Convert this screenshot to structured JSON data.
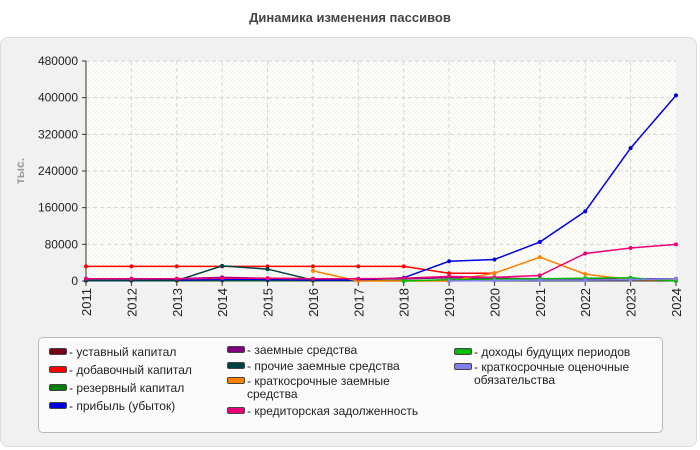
{
  "title": "Динамика изменения пассивов",
  "chart_data": {
    "type": "line",
    "ylabel": "тыс.",
    "xlabel": "",
    "x": [
      "2011",
      "2012",
      "2013",
      "2014",
      "2015",
      "2016",
      "2017",
      "2018",
      "2019",
      "2020",
      "2021",
      "2022",
      "2023",
      "2024"
    ],
    "ylim": [
      0,
      480000
    ],
    "yticks": [
      "480000",
      "400000",
      "320000",
      "240000",
      "160000",
      "80000",
      "0"
    ],
    "grid": true,
    "legend_position": "bottom",
    "series": [
      {
        "name": "уставный капитал",
        "color": "#7a0010",
        "values": [
          null,
          null,
          null,
          null,
          null,
          null,
          null,
          null,
          null,
          null,
          null,
          null,
          null,
          null
        ]
      },
      {
        "name": "добавочный капитал",
        "color": "#ff0000",
        "values": [
          32000,
          32000,
          32000,
          32000,
          32000,
          32000,
          32000,
          32000,
          17000,
          17000,
          null,
          null,
          null,
          null
        ]
      },
      {
        "name": "резервный капитал",
        "color": "#008000",
        "values": [
          1000,
          1000,
          1000,
          1000,
          1000,
          1000,
          1000,
          1000,
          1000,
          1000,
          null,
          null,
          null,
          null
        ]
      },
      {
        "name": "прибыль (убыток)",
        "color": "#0000dd",
        "values": [
          1000,
          1000,
          2000,
          3000,
          3000,
          2000,
          2000,
          7000,
          43000,
          47000,
          85000,
          152000,
          290000,
          405000
        ]
      },
      {
        "name": "заемные средства",
        "color": "#800080",
        "values": [
          5000,
          5000,
          5000,
          8000,
          6000,
          5000,
          5000,
          5000,
          7000,
          6000,
          5000,
          5000,
          5000,
          5000
        ]
      },
      {
        "name": "прочие заемные средства",
        "color": "#004040",
        "values": [
          1000,
          1000,
          1000,
          33000,
          26000,
          2000,
          null,
          null,
          null,
          null,
          null,
          null,
          null,
          null
        ]
      },
      {
        "name": "краткосрочные заемные средства",
        "color": "#ff8000",
        "values": [
          null,
          null,
          null,
          null,
          null,
          22000,
          0,
          0,
          0,
          17000,
          52000,
          15000,
          3000,
          2000
        ]
      },
      {
        "name": "кредиторская задолженность",
        "color": "#ee0077",
        "values": [
          5000,
          5000,
          5000,
          6000,
          6000,
          5000,
          5000,
          6000,
          10000,
          8000,
          12000,
          60000,
          72000,
          80000
        ]
      },
      {
        "name": "доходы будущих периодов",
        "color": "#00bb00",
        "values": [
          null,
          null,
          null,
          null,
          null,
          null,
          null,
          0,
          3000,
          4000,
          5000,
          6000,
          7000,
          0
        ]
      },
      {
        "name": "краткосрочные оценочные обязательства",
        "color": "#8080ee",
        "values": [
          null,
          null,
          null,
          null,
          null,
          null,
          null,
          null,
          0,
          1000,
          2000,
          2000,
          3000,
          5000
        ]
      }
    ]
  }
}
